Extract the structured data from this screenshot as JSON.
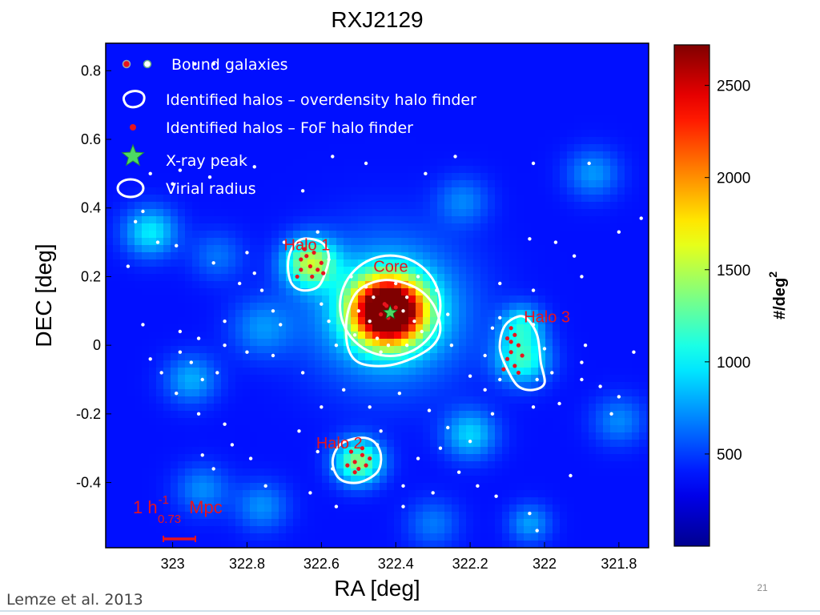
{
  "chart_data": {
    "type": "heatmap",
    "title": "RXJ2129",
    "xlabel": "RA [deg]",
    "ylabel": "DEC [deg]",
    "xlim": [
      323.18,
      321.72
    ],
    "ylim": [
      -0.59,
      0.88
    ],
    "x_ticks": [
      "323",
      "322.8",
      "322.6",
      "322.4",
      "322.2",
      "322",
      "321.8"
    ],
    "x_tick_values": [
      323.0,
      322.8,
      322.6,
      322.4,
      322.2,
      322.0,
      321.8
    ],
    "y_ticks": [
      "0.8",
      "0.6",
      "0.4",
      "0.2",
      "0",
      "-0.2",
      "-0.4"
    ],
    "y_tick_values": [
      0.8,
      0.6,
      0.4,
      0.2,
      0.0,
      -0.2,
      -0.4
    ],
    "grid": false,
    "colorbar": {
      "label": "#/deg",
      "label_sup": "2",
      "min": 0,
      "max": 2720,
      "ticks": [
        "500",
        "1000",
        "1500",
        "2000",
        "2500"
      ],
      "tick_values": [
        500,
        1000,
        1500,
        2000,
        2500
      ],
      "colors": [
        "#00008f",
        "#0000ff",
        "#0080ff",
        "#00ffff",
        "#80ff80",
        "#ffff00",
        "#ff8000",
        "#ff0000",
        "#800000"
      ]
    },
    "legend": {
      "placement": "top-left",
      "entries": [
        {
          "label": "Bound galaxies",
          "marker": "dot-pair"
        },
        {
          "label": "Identified halos – overdensity halo finder",
          "marker": "white-contour"
        },
        {
          "label": "Identified halos – FoF halo finder",
          "marker": "red-dot"
        },
        {
          "label": "X-ray peak",
          "marker": "green-star"
        },
        {
          "label": "Virial radius",
          "marker": "white-ellipse"
        }
      ]
    },
    "density_blobs": [
      {
        "ra": 322.42,
        "dec": 0.1,
        "peak": 2680,
        "sigma": 0.065
      },
      {
        "ra": 322.42,
        "dec": 0.1,
        "peak": 700,
        "sigma": 0.14
      },
      {
        "ra": 322.63,
        "dec": 0.24,
        "peak": 1050,
        "sigma": 0.05
      },
      {
        "ra": 322.06,
        "dec": -0.04,
        "peak": 780,
        "sigma": 0.05
      },
      {
        "ra": 322.06,
        "dec": 0.06,
        "peak": 600,
        "sigma": 0.04
      },
      {
        "ra": 322.5,
        "dec": -0.34,
        "peak": 1000,
        "sigma": 0.045
      },
      {
        "ra": 323.06,
        "dec": 0.33,
        "peak": 600,
        "sigma": 0.05
      },
      {
        "ra": 322.95,
        "dec": -0.1,
        "peak": 420,
        "sigma": 0.05
      },
      {
        "ra": 322.2,
        "dec": -0.26,
        "peak": 520,
        "sigma": 0.05
      },
      {
        "ra": 322.76,
        "dec": 0.05,
        "peak": 330,
        "sigma": 0.06
      },
      {
        "ra": 321.87,
        "dec": 0.5,
        "peak": 360,
        "sigma": 0.05
      },
      {
        "ra": 322.92,
        "dec": -0.42,
        "peak": 330,
        "sigma": 0.05
      },
      {
        "ra": 322.76,
        "dec": -0.47,
        "peak": 340,
        "sigma": 0.05
      },
      {
        "ra": 321.8,
        "dec": -0.22,
        "peak": 320,
        "sigma": 0.05
      },
      {
        "ra": 322.04,
        "dec": -0.52,
        "peak": 380,
        "sigma": 0.04
      },
      {
        "ra": 322.22,
        "dec": 0.42,
        "peak": 300,
        "sigma": 0.05
      },
      {
        "ra": 322.88,
        "dec": 0.26,
        "peak": 260,
        "sigma": 0.05
      },
      {
        "ra": 322.3,
        "dec": -0.52,
        "peak": 280,
        "sigma": 0.05
      }
    ],
    "halos": [
      {
        "label": "Halo 1",
        "ra": 322.63,
        "dec": 0.24
      },
      {
        "label": "Core",
        "ra": 322.42,
        "dec": 0.1
      },
      {
        "label": "Halo 3",
        "ra": 322.06,
        "dec": -0.02
      },
      {
        "label": "Halo 2",
        "ra": 322.5,
        "dec": -0.34
      }
    ],
    "xray_peak": {
      "ra": 322.415,
      "dec": 0.095
    },
    "virial_radius": {
      "ra": 322.415,
      "dec": 0.115,
      "r": 0.135
    },
    "overdensity_contours": [
      [
        [
          322.6,
          0.3
        ],
        [
          322.58,
          0.26
        ],
        [
          322.59,
          0.21
        ],
        [
          322.61,
          0.17
        ],
        [
          322.65,
          0.16
        ],
        [
          322.68,
          0.18
        ],
        [
          322.69,
          0.23
        ],
        [
          322.68,
          0.28
        ],
        [
          322.65,
          0.31
        ]
      ],
      [
        [
          322.35,
          0.17
        ],
        [
          322.3,
          0.12
        ],
        [
          322.28,
          0.05
        ],
        [
          322.3,
          0.0
        ],
        [
          322.36,
          -0.04
        ],
        [
          322.43,
          -0.06
        ],
        [
          322.5,
          -0.05
        ],
        [
          322.53,
          0.0
        ],
        [
          322.53,
          0.09
        ],
        [
          322.5,
          0.16
        ],
        [
          322.43,
          0.19
        ]
      ],
      [
        [
          322.05,
          0.08
        ],
        [
          322.02,
          0.03
        ],
        [
          322.01,
          -0.05
        ],
        [
          322.0,
          -0.11
        ],
        [
          322.03,
          -0.13
        ],
        [
          322.07,
          -0.12
        ],
        [
          322.1,
          -0.07
        ],
        [
          322.12,
          -0.01
        ],
        [
          322.11,
          0.05
        ],
        [
          322.08,
          0.08
        ]
      ],
      [
        [
          322.46,
          -0.28
        ],
        [
          322.44,
          -0.32
        ],
        [
          322.45,
          -0.37
        ],
        [
          322.5,
          -0.4
        ],
        [
          322.55,
          -0.39
        ],
        [
          322.57,
          -0.34
        ],
        [
          322.55,
          -0.29
        ],
        [
          322.5,
          -0.27
        ]
      ]
    ],
    "fof_members": [
      [
        322.645,
        0.28
      ],
      [
        322.62,
        0.27
      ],
      [
        322.655,
        0.25
      ],
      [
        322.6,
        0.24
      ],
      [
        322.63,
        0.23
      ],
      [
        322.61,
        0.22
      ],
      [
        322.655,
        0.22
      ],
      [
        322.625,
        0.2
      ],
      [
        322.665,
        0.2
      ],
      [
        322.595,
        0.21
      ],
      [
        322.64,
        0.26
      ],
      [
        322.09,
        0.05
      ],
      [
        322.08,
        0.03
      ],
      [
        322.1,
        0.02
      ],
      [
        322.07,
        0.0
      ],
      [
        322.09,
        -0.02
      ],
      [
        322.06,
        -0.03
      ],
      [
        322.1,
        -0.04
      ],
      [
        322.08,
        -0.06
      ],
      [
        322.11,
        -0.07
      ],
      [
        322.07,
        -0.08
      ],
      [
        322.09,
        0.01
      ],
      [
        322.52,
        -0.31
      ],
      [
        322.49,
        -0.32
      ],
      [
        322.51,
        -0.34
      ],
      [
        322.48,
        -0.35
      ],
      [
        322.5,
        -0.36
      ],
      [
        322.53,
        -0.35
      ],
      [
        322.47,
        -0.33
      ],
      [
        322.51,
        -0.37
      ],
      [
        322.49,
        -0.3
      ],
      [
        322.43,
        0.12
      ],
      [
        322.41,
        0.1
      ],
      [
        322.42,
        0.08
      ],
      [
        322.4,
        0.11
      ],
      [
        322.44,
        0.09
      ],
      [
        322.425,
        0.115
      ]
    ],
    "bound_galaxies": [
      [
        322.94,
        0.82
      ],
      [
        322.89,
        0.82
      ],
      [
        323.06,
        0.5
      ],
      [
        322.98,
        0.51
      ],
      [
        323.0,
        0.47
      ],
      [
        322.9,
        0.49
      ],
      [
        322.78,
        0.52
      ],
      [
        322.65,
        0.45
      ],
      [
        322.57,
        0.55
      ],
      [
        322.48,
        0.53
      ],
      [
        322.32,
        0.5
      ],
      [
        322.24,
        0.55
      ],
      [
        322.03,
        0.53
      ],
      [
        321.88,
        0.53
      ],
      [
        323.1,
        0.36
      ],
      [
        323.08,
        0.39
      ],
      [
        323.04,
        0.3
      ],
      [
        322.99,
        0.29
      ],
      [
        323.12,
        0.23
      ],
      [
        322.89,
        0.24
      ],
      [
        322.8,
        0.27
      ],
      [
        322.7,
        0.3
      ],
      [
        322.76,
        0.16
      ],
      [
        322.78,
        0.21
      ],
      [
        322.82,
        0.18
      ],
      [
        322.86,
        0.07
      ],
      [
        323.08,
        0.06
      ],
      [
        322.98,
        0.04
      ],
      [
        322.93,
        0.02
      ],
      [
        322.86,
        0.0
      ],
      [
        322.73,
        0.1
      ],
      [
        322.71,
        0.06
      ],
      [
        322.6,
        0.12
      ],
      [
        322.58,
        0.07
      ],
      [
        322.56,
        0.0
      ],
      [
        322.52,
        0.2
      ],
      [
        322.34,
        0.2
      ],
      [
        322.29,
        0.16
      ],
      [
        322.26,
        0.09
      ],
      [
        322.25,
        0.0
      ],
      [
        323.06,
        -0.04
      ],
      [
        323.03,
        -0.08
      ],
      [
        322.98,
        -0.02
      ],
      [
        322.95,
        -0.05
      ],
      [
        322.92,
        -0.1
      ],
      [
        322.88,
        -0.08
      ],
      [
        322.8,
        -0.02
      ],
      [
        322.73,
        -0.03
      ],
      [
        322.65,
        -0.08
      ],
      [
        322.6,
        -0.18
      ],
      [
        322.54,
        -0.13
      ],
      [
        322.47,
        -0.18
      ],
      [
        322.44,
        -0.25
      ],
      [
        322.99,
        -0.14
      ],
      [
        322.93,
        -0.2
      ],
      [
        322.86,
        -0.23
      ],
      [
        322.84,
        -0.29
      ],
      [
        322.92,
        -0.32
      ],
      [
        322.89,
        -0.36
      ],
      [
        322.79,
        -0.33
      ],
      [
        322.75,
        -0.41
      ],
      [
        322.66,
        -0.25
      ],
      [
        322.61,
        -0.31
      ],
      [
        322.39,
        -0.14
      ],
      [
        322.31,
        -0.19
      ],
      [
        322.26,
        -0.24
      ],
      [
        322.2,
        -0.28
      ],
      [
        322.14,
        -0.2
      ],
      [
        322.2,
        -0.09
      ],
      [
        322.03,
        -0.18
      ],
      [
        321.98,
        -0.08
      ],
      [
        321.96,
        -0.17
      ],
      [
        321.9,
        -0.1
      ],
      [
        321.85,
        -0.12
      ],
      [
        321.8,
        -0.15
      ],
      [
        321.82,
        -0.2
      ],
      [
        321.76,
        -0.02
      ],
      [
        321.89,
        0.0
      ],
      [
        321.9,
        -0.05
      ],
      [
        322.04,
        0.31
      ],
      [
        321.97,
        0.3
      ],
      [
        321.92,
        0.26
      ],
      [
        321.9,
        0.2
      ],
      [
        322.03,
        0.16
      ],
      [
        322.12,
        0.18
      ],
      [
        322.14,
        0.05
      ],
      [
        322.16,
        -0.03
      ],
      [
        322.16,
        -0.13
      ],
      [
        321.74,
        0.37
      ],
      [
        321.8,
        0.33
      ],
      [
        322.63,
        -0.43
      ],
      [
        322.56,
        -0.47
      ],
      [
        322.38,
        -0.41
      ],
      [
        322.34,
        -0.33
      ],
      [
        322.28,
        -0.3
      ],
      [
        322.3,
        -0.43
      ],
      [
        322.23,
        -0.37
      ],
      [
        322.18,
        -0.41
      ],
      [
        322.13,
        -0.44
      ],
      [
        322.04,
        -0.49
      ],
      [
        322.02,
        -0.54
      ],
      [
        321.93,
        -0.38
      ],
      [
        322.38,
        -0.47
      ],
      [
        322.4,
        0.18
      ],
      [
        322.37,
        0.14
      ],
      [
        322.35,
        0.07
      ],
      [
        322.37,
        0.0
      ],
      [
        322.45,
        0.02
      ],
      [
        322.47,
        0.07
      ],
      [
        322.46,
        0.14
      ],
      [
        322.48,
        0.17
      ],
      [
        322.5,
        0.1
      ],
      [
        322.38,
        0.1
      ],
      [
        322.51,
        0.03
      ],
      [
        322.33,
        0.04
      ],
      [
        322.42,
        0.0
      ],
      [
        322.44,
        -0.02
      ],
      [
        322.61,
        0.33
      ],
      [
        322.66,
        0.3
      ],
      [
        322.58,
        0.25
      ],
      [
        322.12,
        0.08
      ],
      [
        322.03,
        0.06
      ],
      [
        322.0,
        -0.01
      ],
      [
        322.02,
        -0.1
      ],
      [
        322.12,
        -0.1
      ],
      [
        322.54,
        -0.28
      ],
      [
        322.45,
        -0.29
      ],
      [
        322.57,
        -0.36
      ]
    ],
    "scale_bar": {
      "text": "1 h",
      "sup": "-1",
      "sub": "0.73",
      "unit": "Mpc"
    }
  },
  "footer": {
    "citation": "Lemze et al. 2013",
    "page_number": "21"
  }
}
